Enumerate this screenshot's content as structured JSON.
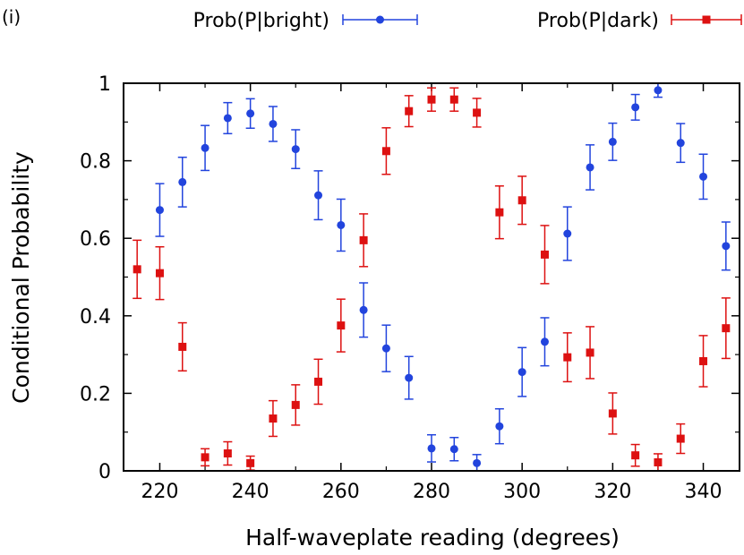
{
  "chart_data": {
    "type": "scatter",
    "panel_label": "(i)",
    "xlabel": "Half-waveplate reading (degrees)",
    "ylabel": "Conditional Probability",
    "xlim": [
      212,
      348
    ],
    "ylim": [
      0,
      1
    ],
    "x_ticks": [
      220,
      240,
      260,
      280,
      300,
      320,
      340
    ],
    "y_ticks": [
      0,
      0.2,
      0.4,
      0.6,
      0.8,
      1
    ],
    "y_tick_labels": [
      "0",
      "0.2",
      "0.4",
      "0.6",
      "0.8",
      "1"
    ],
    "legend_position": "top",
    "series": [
      {
        "name": "Prob(P|bright)",
        "color": "#2244dd",
        "marker": "circle",
        "x": [
          220,
          225,
          230,
          235,
          240,
          245,
          250,
          255,
          260,
          265,
          270,
          275,
          280,
          285,
          290,
          295,
          300,
          305,
          310,
          315,
          320,
          325,
          330,
          335,
          340,
          345
        ],
        "y": [
          0.673,
          0.745,
          0.833,
          0.91,
          0.922,
          0.895,
          0.83,
          0.711,
          0.634,
          0.415,
          0.316,
          0.24,
          0.058,
          0.056,
          0.02,
          0.115,
          0.255,
          0.333,
          0.612,
          0.783,
          0.849,
          0.938,
          0.982,
          0.846,
          0.759,
          0.58
        ],
        "err": [
          0.068,
          0.064,
          0.058,
          0.04,
          0.038,
          0.045,
          0.05,
          0.063,
          0.067,
          0.07,
          0.06,
          0.055,
          0.035,
          0.03,
          0.022,
          0.045,
          0.063,
          0.062,
          0.069,
          0.058,
          0.048,
          0.033,
          0.018,
          0.05,
          0.058,
          0.062
        ]
      },
      {
        "name": "Prob(P|dark)",
        "color": "#dd1111",
        "marker": "square",
        "x": [
          215,
          220,
          225,
          230,
          235,
          240,
          245,
          250,
          255,
          260,
          265,
          270,
          275,
          280,
          285,
          290,
          295,
          300,
          305,
          310,
          315,
          320,
          325,
          330,
          335,
          340,
          345
        ],
        "y": [
          0.52,
          0.51,
          0.32,
          0.035,
          0.045,
          0.02,
          0.135,
          0.17,
          0.23,
          0.375,
          0.595,
          0.825,
          0.928,
          0.958,
          0.958,
          0.924,
          0.667,
          0.698,
          0.558,
          0.293,
          0.305,
          0.148,
          0.04,
          0.022,
          0.083,
          0.283,
          0.368
        ],
        "err": [
          0.075,
          0.068,
          0.062,
          0.022,
          0.03,
          0.018,
          0.046,
          0.052,
          0.058,
          0.068,
          0.068,
          0.06,
          0.04,
          0.03,
          0.03,
          0.037,
          0.068,
          0.062,
          0.075,
          0.063,
          0.067,
          0.053,
          0.028,
          0.022,
          0.038,
          0.066,
          0.078
        ]
      }
    ]
  }
}
